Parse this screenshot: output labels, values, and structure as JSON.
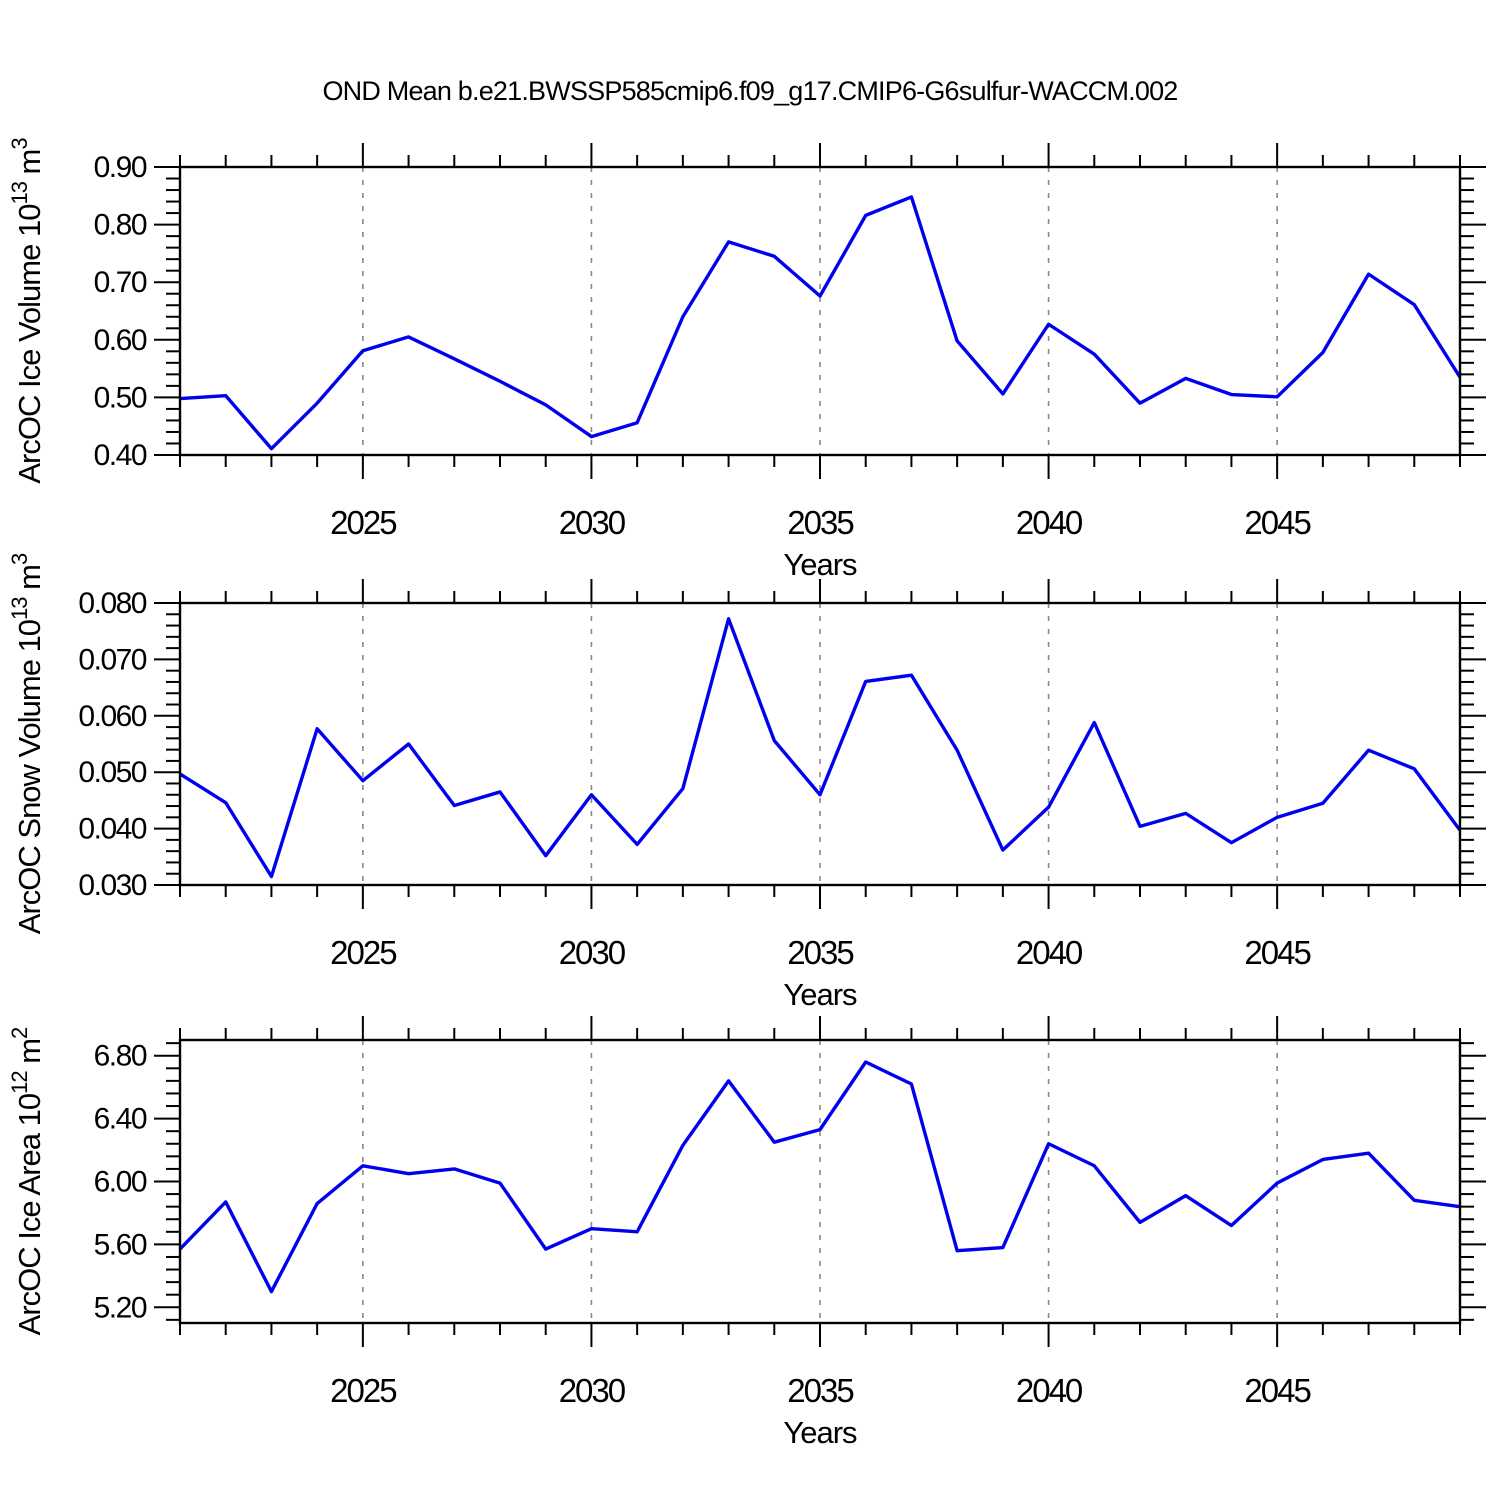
{
  "title": "OND Mean b.e21.BWSSP585cmip6.f09_g17.CMIP6-G6sulfur-WACCM.002",
  "colors": {
    "line": "#0000EE",
    "grid": "#888888",
    "frame": "#000000",
    "text": "#000000"
  },
  "chart_data": [
    {
      "type": "line",
      "ylabel": "ArcOC Ice Volume 10^13 m^3",
      "ylabel_parts": [
        {
          "t": "ArcOC Ice Volume 10"
        },
        {
          "t": "13",
          "sup": true
        },
        {
          "t": " m"
        },
        {
          "t": "3",
          "sup": true
        }
      ],
      "xlabel": "Years",
      "x": [
        2021,
        2022,
        2023,
        2024,
        2025,
        2026,
        2027,
        2028,
        2029,
        2030,
        2031,
        2032,
        2033,
        2034,
        2035,
        2036,
        2037,
        2038,
        2039,
        2040,
        2041,
        2042,
        2043,
        2044,
        2045,
        2046,
        2047,
        2048,
        2049
      ],
      "values": [
        0.498,
        0.503,
        0.411,
        0.49,
        0.581,
        0.605,
        0.567,
        0.528,
        0.487,
        0.432,
        0.456,
        0.64,
        0.77,
        0.745,
        0.676,
        0.816,
        0.848,
        0.598,
        0.506,
        0.627,
        0.575,
        0.49,
        0.533,
        0.505,
        0.501,
        0.578,
        0.714,
        0.661,
        0.535
      ],
      "xlim": [
        2021,
        2049
      ],
      "ylim": [
        0.4,
        0.9
      ],
      "x_major_ticks": [
        2025,
        2030,
        2035,
        2040,
        2045
      ],
      "x_major_labels": [
        "2025",
        "2030",
        "2035",
        "2040",
        "2045"
      ],
      "x_minor_step": 1,
      "y_tick_labels": [
        {
          "v": 0.4,
          "label": "0.40"
        },
        {
          "v": 0.5,
          "label": "0.50"
        },
        {
          "v": 0.6,
          "label": "0.60"
        },
        {
          "v": 0.7,
          "label": "0.70"
        },
        {
          "v": 0.8,
          "label": "0.80"
        },
        {
          "v": 0.9,
          "label": "0.90"
        }
      ],
      "y_major_step": 0.1,
      "y_minor_step": 0.02,
      "grid": "vertical-dashed"
    },
    {
      "type": "line",
      "ylabel": "ArcOC Snow Volume 10^13 m^3",
      "ylabel_parts": [
        {
          "t": "ArcOC Snow Volume 10"
        },
        {
          "t": "13",
          "sup": true
        },
        {
          "t": " m"
        },
        {
          "t": "3",
          "sup": true
        }
      ],
      "xlabel": "Years",
      "x": [
        2021,
        2022,
        2023,
        2024,
        2025,
        2026,
        2027,
        2028,
        2029,
        2030,
        2031,
        2032,
        2033,
        2034,
        2035,
        2036,
        2037,
        2038,
        2039,
        2040,
        2041,
        2042,
        2043,
        2044,
        2045,
        2046,
        2047,
        2048,
        2049
      ],
      "values": [
        0.0497,
        0.0446,
        0.0315,
        0.0577,
        0.0485,
        0.055,
        0.0441,
        0.0465,
        0.0352,
        0.046,
        0.0372,
        0.0471,
        0.0772,
        0.0556,
        0.046,
        0.0661,
        0.0672,
        0.0539,
        0.0362,
        0.0438,
        0.0588,
        0.0404,
        0.0427,
        0.0375,
        0.042,
        0.0445,
        0.0539,
        0.0506,
        0.0397
      ],
      "xlim": [
        2021,
        2049
      ],
      "ylim": [
        0.03,
        0.08
      ],
      "x_major_ticks": [
        2025,
        2030,
        2035,
        2040,
        2045
      ],
      "x_major_labels": [
        "2025",
        "2030",
        "2035",
        "2040",
        "2045"
      ],
      "x_minor_step": 1,
      "y_tick_labels": [
        {
          "v": 0.03,
          "label": "0.030"
        },
        {
          "v": 0.04,
          "label": "0.040"
        },
        {
          "v": 0.05,
          "label": "0.050"
        },
        {
          "v": 0.06,
          "label": "0.060"
        },
        {
          "v": 0.07,
          "label": "0.070"
        },
        {
          "v": 0.08,
          "label": "0.080"
        }
      ],
      "y_major_step": 0.01,
      "y_minor_step": 0.002,
      "grid": "vertical-dashed"
    },
    {
      "type": "line",
      "ylabel": "ArcOC Ice Area 10^12 m^2",
      "ylabel_parts": [
        {
          "t": "ArcOC Ice Area 10"
        },
        {
          "t": "12",
          "sup": true
        },
        {
          "t": " m"
        },
        {
          "t": "2",
          "sup": true
        }
      ],
      "xlabel": "Years",
      "x": [
        2021,
        2022,
        2023,
        2024,
        2025,
        2026,
        2027,
        2028,
        2029,
        2030,
        2031,
        2032,
        2033,
        2034,
        2035,
        2036,
        2037,
        2038,
        2039,
        2040,
        2041,
        2042,
        2043,
        2044,
        2045,
        2046,
        2047,
        2048,
        2049
      ],
      "values": [
        5.57,
        5.87,
        5.3,
        5.86,
        6.1,
        6.05,
        6.08,
        5.99,
        5.57,
        5.7,
        5.68,
        6.23,
        6.64,
        6.25,
        6.33,
        6.76,
        6.62,
        5.56,
        5.58,
        6.24,
        6.1,
        5.74,
        5.91,
        5.72,
        5.99,
        6.14,
        6.18,
        5.88,
        5.84
      ],
      "xlim": [
        2021,
        2049
      ],
      "ylim": [
        5.1,
        6.9
      ],
      "x_major_ticks": [
        2025,
        2030,
        2035,
        2040,
        2045
      ],
      "x_major_labels": [
        "2025",
        "2030",
        "2035",
        "2040",
        "2045"
      ],
      "x_minor_step": 1,
      "y_tick_labels": [
        {
          "v": 5.2,
          "label": "5.20"
        },
        {
          "v": 5.6,
          "label": "5.60"
        },
        {
          "v": 6.0,
          "label": "6.00"
        },
        {
          "v": 6.4,
          "label": "6.40"
        },
        {
          "v": 6.8,
          "label": "6.80"
        }
      ],
      "y_major_step": 0.4,
      "y_minor_step": 0.08,
      "grid": "vertical-dashed"
    }
  ]
}
